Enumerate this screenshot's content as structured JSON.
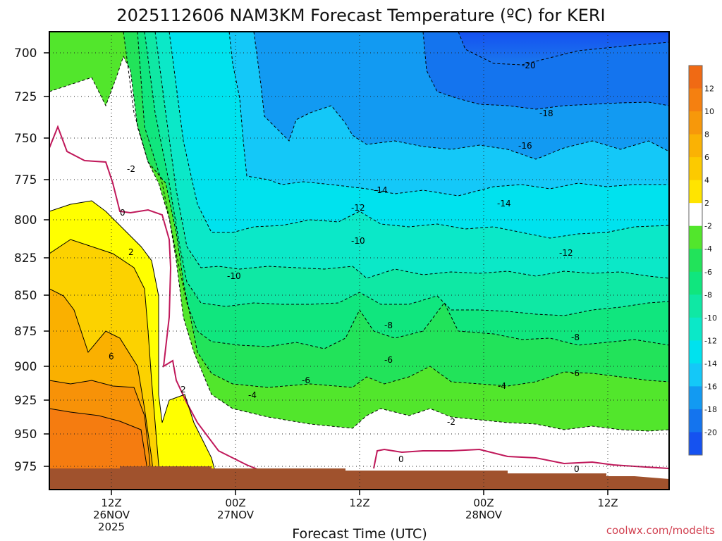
{
  "chart_data": {
    "type": "heatmap",
    "title": "2025112606 NAM3KM Forecast Temperature (ºC) for KERI",
    "xlabel": "Forecast Time (UTC)",
    "ylabel": "",
    "credit": "coolwx.com/modelts",
    "y_ticks": [
      "700",
      "725",
      "750",
      "775",
      "800",
      "825",
      "850",
      "875",
      "900",
      "925",
      "950",
      "975"
    ],
    "x_ticks": [
      {
        "line1": "12Z",
        "line2": "26NOV",
        "line3": "2025"
      },
      {
        "line1": "00Z",
        "line2": "27NOV",
        "line3": ""
      },
      {
        "line1": "12Z",
        "line2": "",
        "line3": ""
      },
      {
        "line1": "00Z",
        "line2": "28NOV",
        "line3": ""
      },
      {
        "line1": "12Z",
        "line2": "",
        "line3": ""
      }
    ],
    "colorbar": {
      "labels": [
        "12",
        "10",
        "8",
        "6",
        "4",
        "2",
        "-2",
        "-4",
        "-6",
        "-8",
        "-10",
        "-12",
        "-14",
        "-16",
        "-18",
        "-20"
      ],
      "colors": [
        "#f06a14",
        "#f58010",
        "#f7980a",
        "#fab204",
        "#fcca00",
        "#ffe400",
        "#ffffff",
        "#52e62c",
        "#22e35a",
        "#10e67e",
        "#0fe8a4",
        "#0be8c8",
        "#00e2ee",
        "#14c8f8",
        "#129af2",
        "#1474ee",
        "#1552f0"
      ]
    },
    "contour_labels": [
      "-20",
      "-18",
      "-16",
      "-14",
      "-14",
      "-12",
      "-12",
      "-10",
      "-10",
      "-8",
      "-8",
      "-6",
      "-6",
      "-6",
      "-4",
      "-4",
      "-2",
      "-2",
      "0",
      "0",
      "0",
      "2",
      "2",
      "6"
    ],
    "ground_color": "#a0522d"
  }
}
